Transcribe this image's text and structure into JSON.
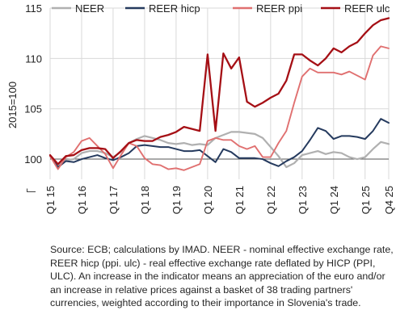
{
  "chart_data": {
    "type": "line",
    "title": "",
    "xlabel": "",
    "ylabel": "2015=100",
    "ylim": [
      98,
      115
    ],
    "yticks": [
      100,
      105,
      110,
      115
    ],
    "grid": "horizontal",
    "legend_position": "top",
    "x_tick_labels": [
      "Q1 15",
      "Q1 16",
      "Q1 17",
      "Q1 18",
      "Q1 19",
      "Q1 20",
      "Q1 21",
      "Q1 22",
      "Q1 23",
      "Q1 24",
      "Q1 25",
      "Q4 25"
    ],
    "x_tick_index": [
      0,
      4,
      8,
      12,
      16,
      20,
      24,
      28,
      32,
      36,
      40,
      43
    ],
    "categories": [
      "Q1 15",
      "Q2 15",
      "Q3 15",
      "Q4 15",
      "Q1 16",
      "Q2 16",
      "Q3 16",
      "Q4 16",
      "Q1 17",
      "Q2 17",
      "Q3 17",
      "Q4 17",
      "Q1 18",
      "Q2 18",
      "Q3 18",
      "Q4 18",
      "Q1 19",
      "Q2 19",
      "Q3 19",
      "Q4 19",
      "Q1 20",
      "Q2 20",
      "Q3 20",
      "Q4 20",
      "Q1 21",
      "Q2 21",
      "Q3 21",
      "Q4 21",
      "Q1 22",
      "Q2 22",
      "Q3 22",
      "Q4 22",
      "Q1 23",
      "Q2 23",
      "Q3 23",
      "Q4 23",
      "Q1 24",
      "Q2 24",
      "Q3 24",
      "Q4 24",
      "Q1 25",
      "Q2 25",
      "Q3 25",
      "Q4 25"
    ],
    "series": [
      {
        "name": "NEER",
        "color": "#b0b0b0",
        "width": 2.2,
        "values": [
          100.3,
          99.4,
          99.9,
          100.0,
          100.6,
          100.8,
          100.8,
          100.6,
          100.2,
          100.7,
          101.6,
          102.0,
          102.3,
          102.1,
          101.9,
          101.6,
          101.5,
          101.6,
          101.4,
          101.5,
          101.4,
          102.1,
          102.4,
          102.7,
          102.7,
          102.6,
          102.5,
          102.1,
          101.2,
          100.3,
          99.2,
          99.6,
          100.4,
          100.6,
          100.8,
          100.5,
          100.7,
          100.6,
          100.2,
          100.0,
          100.2,
          101.0,
          101.7,
          101.5
        ]
      },
      {
        "name": "REER hicp",
        "color": "#253a5e",
        "width": 2.0,
        "values": [
          100.3,
          99.2,
          99.8,
          99.7,
          100.0,
          100.2,
          100.4,
          100.1,
          99.9,
          100.2,
          100.6,
          101.3,
          101.4,
          101.3,
          101.2,
          101.2,
          101.0,
          100.8,
          100.8,
          100.9,
          100.3,
          99.7,
          101.0,
          100.7,
          100.1,
          100.1,
          100.1,
          100.0,
          99.6,
          99.3,
          99.8,
          100.2,
          100.8,
          101.9,
          103.1,
          102.8,
          102.0,
          102.3,
          102.3,
          102.2,
          102.0,
          102.8,
          104.0,
          103.6
        ]
      },
      {
        "name": "REER ppi",
        "color": "#e07070",
        "width": 1.9,
        "values": [
          100.3,
          99.0,
          100.2,
          100.7,
          101.8,
          102.1,
          101.3,
          100.5,
          99.1,
          100.4,
          101.6,
          101.3,
          100.1,
          99.5,
          99.4,
          99.0,
          99.1,
          98.9,
          99.2,
          99.5,
          101.8,
          102.1,
          101.9,
          101.9,
          101.3,
          101.0,
          101.3,
          100.2,
          100.2,
          101.6,
          102.8,
          105.6,
          108.2,
          109.0,
          108.6,
          108.6,
          108.6,
          108.4,
          108.7,
          108.3,
          107.9,
          110.3,
          111.2,
          111.0
        ]
      },
      {
        "name": "REER ulc",
        "color": "#a50f15",
        "width": 2.3,
        "values": [
          100.4,
          99.5,
          100.3,
          100.4,
          100.9,
          101.1,
          101.1,
          101.0,
          100.1,
          100.8,
          101.6,
          101.9,
          101.8,
          101.8,
          102.2,
          102.4,
          102.7,
          103.2,
          103.0,
          102.8,
          110.4,
          102.8,
          110.5,
          109.0,
          110.1,
          105.7,
          105.2,
          105.6,
          106.1,
          106.5,
          107.8,
          110.4,
          110.4,
          109.8,
          109.3,
          110.0,
          111.0,
          110.6,
          111.2,
          111.6,
          112.5,
          113.3,
          113.8,
          114.0
        ]
      }
    ]
  },
  "source_note": "Source: ECB; calculations by IMAD. NEER - nominal effective exchange rate, REER hicp (ppi. ulc) - real effective exchange rate deflated by HICP (PPI, ULC). An increase in the indicator means an appreciation of the euro and/or an increase in relative prices against a basket of 38 trading partners' currencies, weighted according to their importance in Slovenia's trade."
}
